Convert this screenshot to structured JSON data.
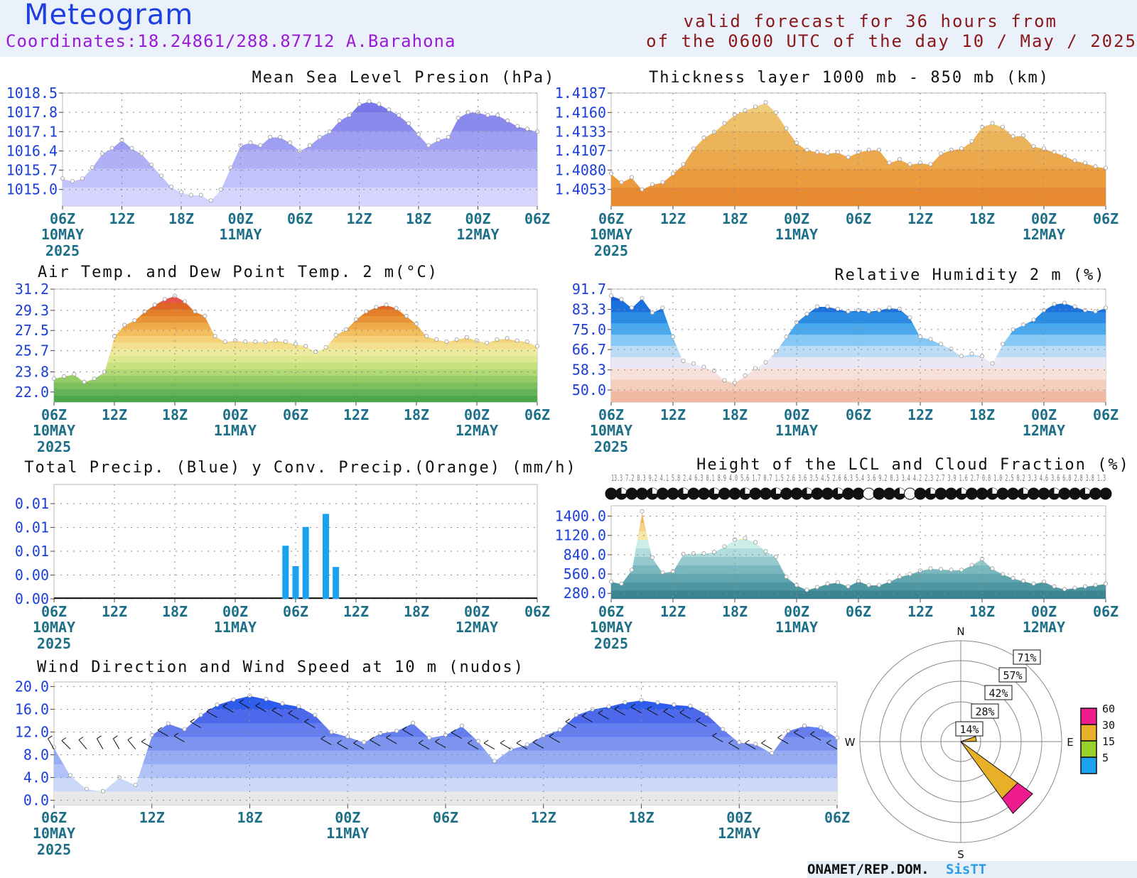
{
  "header": {
    "title": "Meteogram",
    "coordinates": "Coordinates:18.24861/288.87712 A.Barahona",
    "valid_line1": "valid forecast for 36 hours from",
    "valid_line2": "of the 0600 UTC of the day 10 / May / 2025"
  },
  "footer": {
    "org": "ONAMET/REP.DOM.",
    "system": "SisTT"
  },
  "time_axis": {
    "ticks": [
      "06Z",
      "12Z",
      "18Z",
      "00Z",
      "06Z",
      "12Z",
      "18Z",
      "00Z",
      "06Z"
    ],
    "date_labels": [
      {
        "tick": 0,
        "lines": [
          "10MAY",
          "2025"
        ]
      },
      {
        "tick": 3,
        "lines": [
          "11MAY"
        ]
      },
      {
        "tick": 7,
        "lines": [
          "12MAY"
        ]
      }
    ]
  },
  "chart_data": [
    {
      "id": "mslp",
      "type": "area",
      "title": "Mean Sea Level Presion (hPa)",
      "y_ticks": [
        "1015.0",
        "1015.7",
        "1016.4",
        "1017.1",
        "1017.8",
        "1018.5"
      ],
      "ylim": [
        1014.4,
        1018.5
      ],
      "xlim": [
        0,
        48
      ],
      "grid": true,
      "band_colors": [
        "#d4d4fc",
        "#c2c2fa",
        "#b0b0f6",
        "#9e9ef2",
        "#8a8aee",
        "#7777ea"
      ],
      "x": [
        0,
        1,
        2,
        3,
        4,
        5,
        6,
        7,
        8,
        9,
        10,
        11,
        12,
        13,
        14,
        15,
        16,
        17,
        18,
        19,
        20,
        21,
        22,
        23,
        24,
        25,
        26,
        27,
        28,
        29,
        30,
        31,
        32,
        33,
        34,
        35,
        36,
        37,
        38,
        39,
        40,
        41,
        42,
        43,
        44,
        45,
        46,
        47,
        48
      ],
      "values": [
        1015.4,
        1015.3,
        1015.4,
        1015.8,
        1016.3,
        1016.5,
        1016.8,
        1016.5,
        1016.3,
        1015.9,
        1015.5,
        1015.1,
        1014.9,
        1014.8,
        1014.8,
        1014.6,
        1015.0,
        1015.8,
        1016.6,
        1016.7,
        1016.6,
        1016.9,
        1016.9,
        1016.7,
        1016.4,
        1016.6,
        1016.9,
        1017.1,
        1017.5,
        1017.7,
        1018.1,
        1018.2,
        1018.1,
        1017.9,
        1017.7,
        1017.4,
        1017.0,
        1016.6,
        1016.8,
        1016.9,
        1017.6,
        1017.8,
        1017.8,
        1017.7,
        1017.7,
        1017.5,
        1017.3,
        1017.2,
        1017.1
      ]
    },
    {
      "id": "thickness",
      "type": "area",
      "title": "Thickness layer 1000 mb - 850 mb (km)",
      "y_ticks": [
        "1.4053",
        "1.4080",
        "1.4107",
        "1.4133",
        "1.4160",
        "1.4187"
      ],
      "ylim": [
        1.403,
        1.4187
      ],
      "xlim": [
        0,
        48
      ],
      "grid": true,
      "band_colors": [
        "#e88a32",
        "#ec9a3e",
        "#eca84c",
        "#ecb45a",
        "#eec06a",
        "#f0cc7c"
      ],
      "x": [
        0,
        1,
        2,
        3,
        4,
        5,
        6,
        7,
        8,
        9,
        10,
        11,
        12,
        13,
        14,
        15,
        16,
        17,
        18,
        19,
        20,
        21,
        22,
        23,
        24,
        25,
        26,
        27,
        28,
        29,
        30,
        31,
        32,
        33,
        34,
        35,
        36,
        37,
        38,
        39,
        40,
        41,
        42,
        43,
        44,
        45,
        46,
        47,
        48
      ],
      "values": [
        1.4075,
        1.4063,
        1.407,
        1.4053,
        1.406,
        1.4063,
        1.4075,
        1.4088,
        1.411,
        1.4125,
        1.4133,
        1.4145,
        1.4157,
        1.4163,
        1.4168,
        1.4174,
        1.416,
        1.4138,
        1.4118,
        1.4108,
        1.4105,
        1.4103,
        1.4105,
        1.4098,
        1.4105,
        1.4108,
        1.4108,
        1.409,
        1.4095,
        1.4088,
        1.409,
        1.4088,
        1.4103,
        1.4108,
        1.411,
        1.412,
        1.414,
        1.4145,
        1.414,
        1.4127,
        1.4128,
        1.4113,
        1.411,
        1.4105,
        1.41,
        1.4093,
        1.409,
        1.4085,
        1.4083
      ]
    },
    {
      "id": "temp",
      "type": "area",
      "title": "Air Temp. and Dew Point Temp. 2 m(°C)",
      "y_ticks": [
        "22.0",
        "23.8",
        "25.7",
        "27.5",
        "29.3",
        "31.2"
      ],
      "ylim": [
        21.1,
        31.2
      ],
      "xlim": [
        0,
        48
      ],
      "grid": true,
      "band_colors": [
        "#4aa84a",
        "#62b456",
        "#7cc05e",
        "#96cc68",
        "#b0d874",
        "#c8e282",
        "#dee890",
        "#ecec9e",
        "#f2e08e",
        "#f4d078",
        "#f2be5e",
        "#eeaa48",
        "#e89434",
        "#e47e28",
        "#e06424",
        "#e8544a",
        "#f04444"
      ],
      "x": [
        0,
        1,
        2,
        3,
        4,
        5,
        6,
        7,
        8,
        9,
        10,
        11,
        12,
        13,
        14,
        15,
        16,
        17,
        18,
        19,
        20,
        21,
        22,
        23,
        24,
        25,
        26,
        27,
        28,
        29,
        30,
        31,
        32,
        33,
        34,
        35,
        36,
        37,
        38,
        39,
        40,
        41,
        42,
        43,
        44,
        45,
        46,
        47,
        48
      ],
      "values": [
        23.2,
        23.4,
        23.6,
        22.9,
        23.2,
        23.8,
        27.0,
        28.0,
        28.4,
        29.2,
        29.8,
        30.3,
        30.6,
        30.1,
        29.2,
        28.8,
        27.0,
        26.5,
        26.6,
        26.5,
        26.5,
        26.5,
        26.6,
        26.5,
        26.3,
        26.1,
        25.6,
        26.0,
        27.1,
        27.6,
        28.5,
        29.2,
        29.6,
        29.8,
        29.5,
        28.8,
        28.1,
        27.0,
        26.7,
        26.5,
        26.7,
        26.9,
        26.6,
        26.4,
        26.7,
        26.8,
        26.6,
        26.5,
        26.1
      ]
    },
    {
      "id": "rh",
      "type": "area",
      "title": "Relative Humidity 2 m (%)",
      "y_ticks": [
        "50.0",
        "58.3",
        "66.7",
        "75.0",
        "83.3",
        "91.7"
      ],
      "ylim": [
        45.0,
        91.7
      ],
      "xlim": [
        0,
        48
      ],
      "grid": true,
      "band_colors": [
        "#f0b8a0",
        "#f5cdbc",
        "#f8e0da",
        "#eae8f4",
        "#bcdcf6",
        "#88c8f4",
        "#4aa8ec",
        "#2c8ce4",
        "#1a70dc",
        "#1a5ad0"
      ],
      "x": [
        0,
        1,
        2,
        3,
        4,
        5,
        6,
        7,
        8,
        9,
        10,
        11,
        12,
        13,
        14,
        15,
        16,
        17,
        18,
        19,
        20,
        21,
        22,
        23,
        24,
        25,
        26,
        27,
        28,
        29,
        30,
        31,
        32,
        33,
        34,
        35,
        36,
        37,
        38,
        39,
        40,
        41,
        42,
        43,
        44,
        45,
        46,
        47,
        48
      ],
      "values": [
        89.0,
        87.5,
        84.0,
        88.0,
        82.0,
        84.0,
        72.0,
        62.0,
        61.0,
        59.5,
        58.0,
        54.0,
        53.0,
        56.0,
        59.0,
        61.5,
        66.0,
        72.0,
        78.0,
        81.5,
        84.5,
        84.5,
        83.5,
        82.5,
        83.0,
        82.5,
        83.0,
        84.0,
        83.5,
        80.0,
        72.0,
        71.0,
        69.0,
        67.0,
        64.0,
        65.0,
        64.0,
        61.0,
        69.0,
        75.0,
        77.0,
        79.0,
        83.0,
        85.5,
        86.0,
        84.5,
        83.0,
        82.5,
        84.0
      ]
    },
    {
      "id": "precip",
      "type": "bar",
      "title": "Total Precip. (Blue) y Conv. Precip.(Orange) (mm/h)",
      "y_ticks": [
        "0.00",
        "0.00",
        "0.01",
        "0.01",
        "0.01"
      ],
      "ylim": [
        0,
        0.014
      ],
      "xlim": [
        0,
        48
      ],
      "grid": true,
      "series": [
        {
          "name": "Total Precip.",
          "color": "#1aa2ee",
          "x": [
            23,
            24,
            25,
            27,
            28
          ],
          "values": [
            0.0065,
            0.004,
            0.0088,
            0.0104,
            0.0039
          ]
        },
        {
          "name": "Conv. Precip.",
          "color": "#ee9a1a",
          "x": [],
          "values": []
        }
      ]
    },
    {
      "id": "lcl",
      "type": "area",
      "title": "Height of the LCL and Cloud Fraction (%)",
      "y_ticks": [
        "280.0",
        "560.0",
        "840.0",
        "1120.0",
        "1400.0"
      ],
      "ylim": [
        200,
        1550
      ],
      "xlim": [
        0,
        48
      ],
      "grid": true,
      "band_colors": [
        "#3a8492",
        "#4e96a2",
        "#62a6b0",
        "#7ab8c0",
        "#94cace",
        "#b0dcdc",
        "#cceee8",
        "#f6e6a8",
        "#f4d28a",
        "#f0b85a",
        "#ec9c30"
      ],
      "x": [
        0,
        1,
        2,
        3,
        4,
        5,
        6,
        7,
        8,
        9,
        10,
        11,
        12,
        13,
        14,
        15,
        16,
        17,
        18,
        19,
        20,
        21,
        22,
        23,
        24,
        25,
        26,
        27,
        28,
        29,
        30,
        31,
        32,
        33,
        34,
        35,
        36,
        37,
        38,
        39,
        40,
        41,
        42,
        43,
        44,
        45,
        46,
        47,
        48
      ],
      "values": [
        450,
        420,
        620,
        1470,
        800,
        580,
        600,
        850,
        860,
        860,
        880,
        960,
        1060,
        1080,
        1020,
        890,
        810,
        520,
        400,
        330,
        370,
        420,
        440,
        380,
        460,
        400,
        400,
        450,
        520,
        560,
        610,
        640,
        630,
        620,
        620,
        690,
        780,
        640,
        560,
        500,
        460,
        420,
        450,
        380,
        340,
        360,
        380,
        400,
        420
      ],
      "cloud_fraction_text": "13.3 7.2 0.3 9.2 4.1 5.8 2.4 6.3 0.1 8.9 4.0 5.6 1.7 0.7 1.5 2.6 3.6 3.5 4.5 2.6 6.3 5.4 3.6 9.2 8.3 3.4 4.2 2.3 2.7 3.9 1.6 2.7 0.8 1.0 2.5 0.2 3.3 4.6 3.6 6.8 2.8 3.8 1.3",
      "cloud_fraction": [
        100,
        100,
        100,
        100,
        100,
        100,
        100,
        100,
        100,
        100,
        100,
        100,
        100,
        100,
        100,
        100,
        100,
        100,
        100,
        100,
        100,
        100,
        100,
        100,
        100,
        0,
        100,
        100,
        100,
        0,
        100,
        100,
        100,
        100,
        100,
        100,
        100,
        100,
        100,
        100,
        100,
        100,
        100,
        100,
        100,
        100,
        100,
        100,
        100
      ]
    },
    {
      "id": "wind",
      "type": "area",
      "title": "Wind Direction and Wind Speed at 10 m (nudos)",
      "y_ticks": [
        "0.0",
        "4.0",
        "8.0",
        "12.0",
        "16.0",
        "20.0"
      ],
      "ylim": [
        -0.8,
        20.8
      ],
      "xlim": [
        0,
        48
      ],
      "grid": true,
      "band_colors": [
        "#e8e8e8",
        "#ccd8f8",
        "#b0c2f8",
        "#96acf4",
        "#7c94f0",
        "#647ef0",
        "#4e68ec",
        "#2e5cec",
        "#1a6ae8"
      ],
      "x": [
        0,
        1,
        2,
        3,
        4,
        5,
        6,
        7,
        8,
        9,
        10,
        11,
        12,
        13,
        14,
        15,
        16,
        17,
        18,
        19,
        20,
        21,
        22,
        23,
        24,
        25,
        26,
        27,
        28,
        29,
        30,
        31,
        32,
        33,
        34,
        35,
        36,
        37,
        38,
        39,
        40,
        41,
        42,
        43,
        44,
        45,
        46,
        47,
        48
      ],
      "values": [
        9.3,
        4.4,
        2.0,
        1.6,
        4.0,
        2.7,
        11.5,
        13.5,
        12.5,
        15.0,
        16.8,
        17.7,
        18.4,
        17.8,
        17.0,
        16.5,
        15.0,
        12.0,
        11.2,
        10.2,
        11.8,
        12.2,
        13.6,
        11.0,
        11.5,
        13.1,
        10.4,
        6.9,
        9.0,
        9.8,
        11.4,
        12.4,
        15.0,
        16.0,
        16.5,
        17.2,
        17.6,
        17.2,
        16.8,
        16.6,
        15.2,
        12.5,
        10.2,
        9.9,
        8.3,
        12.2,
        13.1,
        12.8,
        11.0
      ],
      "direction_deg": [
        330,
        315,
        320,
        330,
        330,
        320,
        300,
        300,
        300,
        300,
        300,
        300,
        300,
        300,
        300,
        300,
        300,
        300,
        300,
        300,
        300,
        300,
        300,
        300,
        300,
        300,
        300,
        300,
        300,
        300,
        300,
        300,
        300,
        300,
        300,
        300,
        300,
        300,
        300,
        300,
        300,
        300,
        300,
        300,
        300,
        300,
        300,
        300,
        300
      ]
    },
    {
      "id": "windrose",
      "type": "pie",
      "directions": [
        "N",
        "E",
        "S",
        "W"
      ],
      "ring_labels": [
        "14%",
        "28%",
        "42%",
        "57%",
        "71%"
      ],
      "legend": [
        {
          "label": "60",
          "color": "#ee1c8e"
        },
        {
          "label": "30",
          "color": "#e8b028"
        },
        {
          "label": "15",
          "color": "#98d02c"
        },
        {
          "label": "5",
          "color": "#1aa2ee"
        }
      ],
      "petals": [
        {
          "direction_deg": 135,
          "segments": [
            {
              "speed_class": "15",
              "percent": 1.5
            },
            {
              "speed_class": "30",
              "percent": 48
            },
            {
              "speed_class": "60",
              "percent": 13
            }
          ]
        },
        {
          "direction_deg": 80,
          "segments": [
            {
              "speed_class": "30",
              "percent": 11
            }
          ]
        }
      ]
    }
  ]
}
